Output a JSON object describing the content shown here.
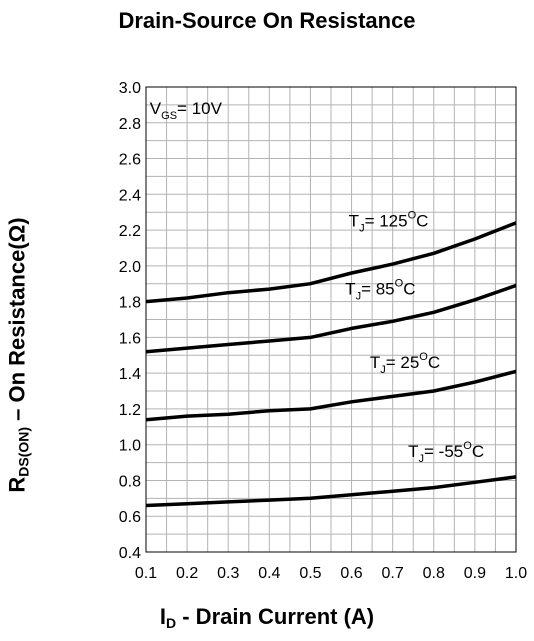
{
  "chart_data": {
    "type": "line",
    "title": "Drain-Source On Resistance",
    "ylabel": {
      "main": "R",
      "sub": "DS(ON)",
      "rest": " – On Resistance(Ω)"
    },
    "xlabel": {
      "main": "I",
      "sub": "D",
      "rest": " - Drain Current (A)"
    },
    "x": [
      0.1,
      0.2,
      0.3,
      0.4,
      0.5,
      0.6,
      0.7,
      0.8,
      0.9,
      1.0
    ],
    "xlim": [
      0.1,
      1.0
    ],
    "ylim": [
      0.4,
      3.0
    ],
    "xticks": [
      "0.1",
      "0.2",
      "0.3",
      "0.4",
      "0.5",
      "0.6",
      "0.7",
      "0.8",
      "0.9",
      "1.0"
    ],
    "yticks": [
      "0.4",
      "0.6",
      "0.8",
      "1.0",
      "1.2",
      "1.4",
      "1.6",
      "1.8",
      "2.0",
      "2.2",
      "2.4",
      "2.6",
      "2.8",
      "3.0"
    ],
    "grid": true,
    "condition": {
      "main": "V",
      "sub": "GS",
      "rest": "= 10V"
    },
    "series": [
      {
        "name": "T_J = 125°C",
        "label": {
          "main": "T",
          "sub": "J",
          "rest": "= 125",
          "sup": "O",
          "unit": "C"
        },
        "values": [
          1.8,
          1.82,
          1.85,
          1.87,
          1.9,
          1.96,
          2.01,
          2.07,
          2.15,
          2.24
        ]
      },
      {
        "name": "T_J = 85°C",
        "label": {
          "main": "T",
          "sub": "J",
          "rest": "= 85",
          "sup": "O",
          "unit": "C"
        },
        "values": [
          1.52,
          1.54,
          1.56,
          1.58,
          1.6,
          1.65,
          1.69,
          1.74,
          1.81,
          1.89
        ]
      },
      {
        "name": "T_J = 25°C",
        "label": {
          "main": "T",
          "sub": "J",
          "rest": "= 25",
          "sup": "O",
          "unit": "C"
        },
        "values": [
          1.14,
          1.16,
          1.17,
          1.19,
          1.2,
          1.24,
          1.27,
          1.3,
          1.35,
          1.41
        ]
      },
      {
        "name": "T_J = -55°C",
        "label": {
          "main": "T",
          "sub": "J",
          "rest": "= -55",
          "sup": "O",
          "unit": "C"
        },
        "values": [
          0.66,
          0.67,
          0.68,
          0.69,
          0.7,
          0.72,
          0.74,
          0.76,
          0.79,
          0.82
        ]
      }
    ]
  }
}
